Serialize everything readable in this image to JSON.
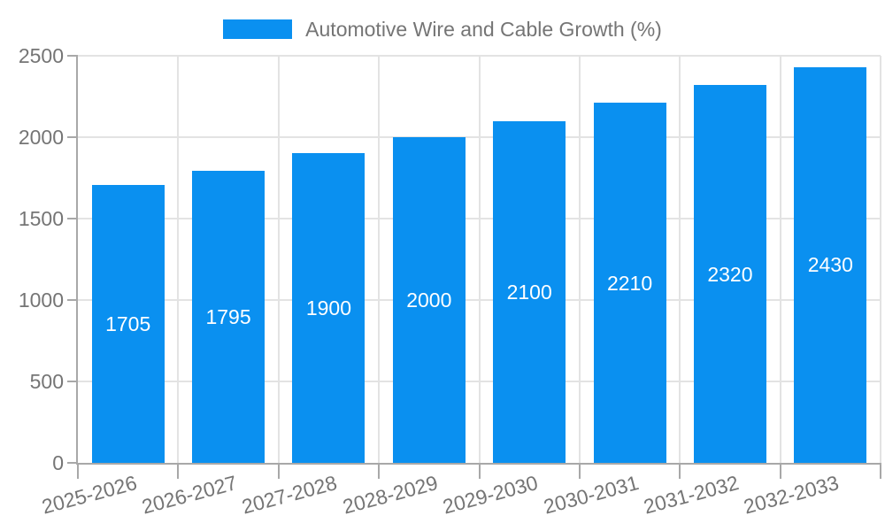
{
  "chart_data": {
    "type": "bar",
    "title": "",
    "legend": [
      "Automotive Wire and Cable Growth (%)"
    ],
    "legend_position": "top",
    "categories": [
      "2025-2026",
      "2026-2027",
      "2027-2028",
      "2028-2029",
      "2029-2030",
      "2030-2031",
      "2031-2032",
      "2032-2033"
    ],
    "values": [
      1705,
      1795,
      1900,
      2000,
      2100,
      2210,
      2320,
      2430
    ],
    "value_labels_shown": true,
    "xlabel": "",
    "ylabel": "",
    "ylim": [
      0,
      2500
    ],
    "yticks": [
      0,
      500,
      1000,
      1500,
      2000,
      2500
    ],
    "grid": true,
    "colors": {
      "bar": "#0a90f0",
      "value_label": "#ffffff",
      "axis_text": "#757575",
      "gridline": "#e3e3e3",
      "axis_line": "#a8a8a8"
    }
  }
}
